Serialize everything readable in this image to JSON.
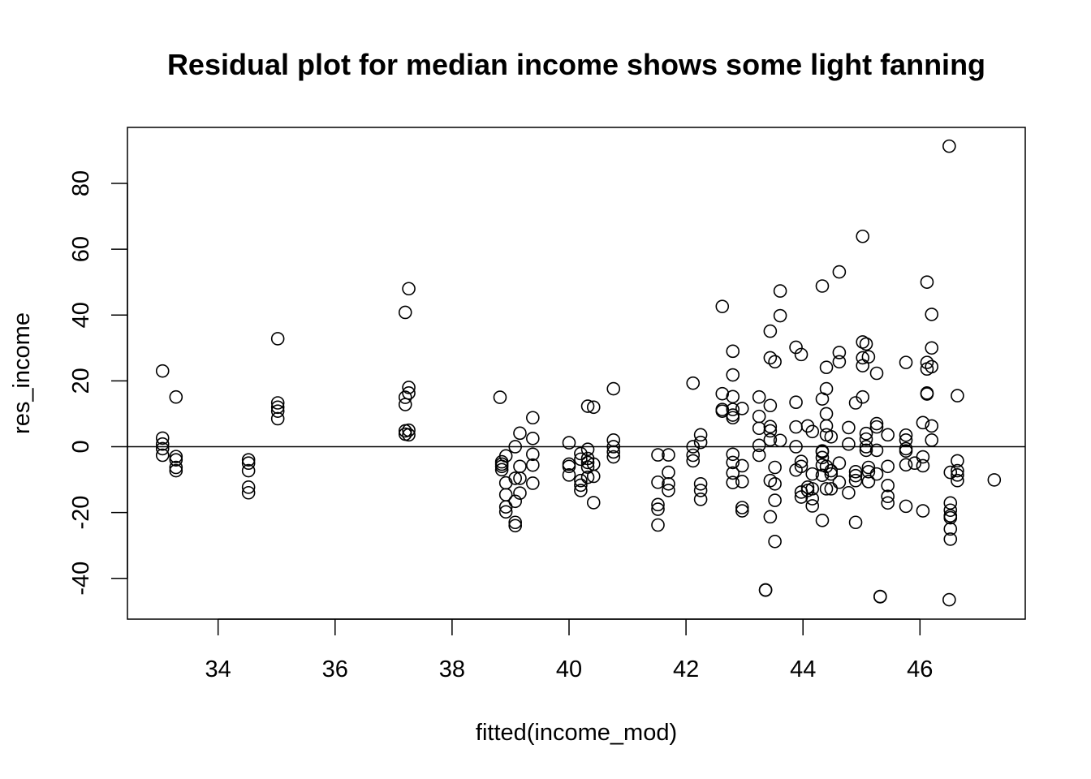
{
  "chart_data": {
    "type": "scatter",
    "title": "Residual plot for median income shows some light fanning",
    "xlabel": "fitted(income_mod)",
    "ylabel": "res_income",
    "xlim": [
      32.45,
      47.8
    ],
    "ylim": [
      -52.4,
      97.0
    ],
    "x_ticks": [
      34,
      36,
      38,
      40,
      42,
      44,
      46
    ],
    "y_ticks": [
      -40,
      -20,
      0,
      20,
      40,
      60,
      80
    ],
    "reference_line_y": 0,
    "grid": false,
    "marker": "open-circle",
    "color": "#000000",
    "points": [
      [
        33.05,
        23.0
      ],
      [
        33.05,
        2.6
      ],
      [
        33.05,
        0.8
      ],
      [
        33.05,
        -0.6
      ],
      [
        33.05,
        -2.6
      ],
      [
        33.28,
        15.1
      ],
      [
        33.28,
        -3.0
      ],
      [
        33.28,
        -4.0
      ],
      [
        33.28,
        -6.3
      ],
      [
        33.28,
        -7.3
      ],
      [
        34.52,
        -4.0
      ],
      [
        34.52,
        -5.0
      ],
      [
        34.52,
        -7.3
      ],
      [
        34.52,
        -12.3
      ],
      [
        34.52,
        -14.0
      ],
      [
        35.02,
        32.8
      ],
      [
        35.02,
        13.3
      ],
      [
        35.02,
        12.0
      ],
      [
        35.02,
        10.8
      ],
      [
        35.02,
        8.5
      ],
      [
        37.2,
        40.8
      ],
      [
        37.2,
        15.0
      ],
      [
        37.2,
        12.8
      ],
      [
        37.2,
        4.8
      ],
      [
        37.2,
        3.8
      ],
      [
        37.26,
        48.0
      ],
      [
        37.26,
        18.0
      ],
      [
        37.26,
        16.3
      ],
      [
        37.26,
        5.0
      ],
      [
        37.26,
        3.6
      ],
      [
        38.82,
        15.0
      ],
      [
        38.85,
        -4.6
      ],
      [
        38.85,
        -5.3
      ],
      [
        38.85,
        -6.0
      ],
      [
        38.85,
        -7.0
      ],
      [
        38.92,
        -2.8
      ],
      [
        38.92,
        -11.0
      ],
      [
        38.92,
        -14.6
      ],
      [
        38.92,
        -18.3
      ],
      [
        38.92,
        -19.8
      ],
      [
        39.08,
        0.0
      ],
      [
        39.08,
        -9.6
      ],
      [
        39.08,
        -16.6
      ],
      [
        39.08,
        -23.0
      ],
      [
        39.08,
        -24.0
      ],
      [
        39.16,
        4.1
      ],
      [
        39.16,
        -6.0
      ],
      [
        39.16,
        -9.6
      ],
      [
        39.16,
        -14.1
      ],
      [
        39.38,
        8.8
      ],
      [
        39.38,
        2.5
      ],
      [
        39.38,
        -2.3
      ],
      [
        39.38,
        -5.6
      ],
      [
        39.38,
        -11.1
      ],
      [
        40.0,
        1.2
      ],
      [
        40.0,
        -5.3
      ],
      [
        40.0,
        -6.0
      ],
      [
        40.0,
        -8.6
      ],
      [
        40.2,
        -2.1
      ],
      [
        40.2,
        -3.8
      ],
      [
        40.2,
        -10.3
      ],
      [
        40.2,
        -11.7
      ],
      [
        40.2,
        -13.3
      ],
      [
        40.32,
        12.3
      ],
      [
        40.32,
        -0.8
      ],
      [
        40.32,
        -3.6
      ],
      [
        40.32,
        -4.8
      ],
      [
        40.32,
        -6.2
      ],
      [
        40.32,
        -9.3
      ],
      [
        40.42,
        12.0
      ],
      [
        40.42,
        -5.3
      ],
      [
        40.42,
        -9.0
      ],
      [
        40.42,
        -17.0
      ],
      [
        40.76,
        17.6
      ],
      [
        40.76,
        2.0
      ],
      [
        40.76,
        0.0
      ],
      [
        40.76,
        -1.6
      ],
      [
        40.76,
        -3.1
      ],
      [
        41.52,
        -2.5
      ],
      [
        41.52,
        -10.8
      ],
      [
        41.52,
        -17.6
      ],
      [
        41.52,
        -19.0
      ],
      [
        41.52,
        -23.8
      ],
      [
        41.7,
        -2.5
      ],
      [
        41.7,
        -7.8
      ],
      [
        41.7,
        -11.3
      ],
      [
        41.7,
        -13.3
      ],
      [
        42.12,
        19.3
      ],
      [
        42.12,
        0.0
      ],
      [
        42.12,
        -2.6
      ],
      [
        42.12,
        -4.3
      ],
      [
        42.25,
        3.6
      ],
      [
        42.25,
        1.3
      ],
      [
        42.25,
        -11.3
      ],
      [
        42.25,
        -13.3
      ],
      [
        42.25,
        -16.0
      ],
      [
        42.62,
        42.6
      ],
      [
        42.62,
        16.1
      ],
      [
        42.62,
        11.3
      ],
      [
        42.62,
        10.8
      ],
      [
        42.8,
        29.0
      ],
      [
        42.8,
        21.8
      ],
      [
        42.8,
        15.2
      ],
      [
        42.8,
        11.3
      ],
      [
        42.8,
        9.6
      ],
      [
        42.8,
        8.8
      ],
      [
        42.8,
        -2.3
      ],
      [
        42.8,
        -4.8
      ],
      [
        42.8,
        -8.0
      ],
      [
        42.8,
        -10.9
      ],
      [
        42.96,
        11.6
      ],
      [
        42.96,
        -5.8
      ],
      [
        42.96,
        -10.6
      ],
      [
        42.96,
        -18.5
      ],
      [
        42.96,
        -19.5
      ],
      [
        43.25,
        15.1
      ],
      [
        43.25,
        9.2
      ],
      [
        43.25,
        5.6
      ],
      [
        43.25,
        0.4
      ],
      [
        43.25,
        -2.6
      ],
      [
        43.36,
        -43.5
      ],
      [
        43.36,
        -43.6
      ],
      [
        43.44,
        35.1
      ],
      [
        43.44,
        27.0
      ],
      [
        43.44,
        12.5
      ],
      [
        43.44,
        6.1
      ],
      [
        43.44,
        4.8
      ],
      [
        43.44,
        2.1
      ],
      [
        43.44,
        -10.3
      ],
      [
        43.44,
        -21.3
      ],
      [
        43.52,
        25.8
      ],
      [
        43.52,
        -6.3
      ],
      [
        43.52,
        -11.3
      ],
      [
        43.52,
        -16.3
      ],
      [
        43.52,
        -28.8
      ],
      [
        43.61,
        47.3
      ],
      [
        43.61,
        39.8
      ],
      [
        43.61,
        1.9
      ],
      [
        43.88,
        30.2
      ],
      [
        43.88,
        13.5
      ],
      [
        43.88,
        6.0
      ],
      [
        43.88,
        0.0
      ],
      [
        43.88,
        -7.1
      ],
      [
        43.97,
        28.0
      ],
      [
        43.97,
        -4.5
      ],
      [
        43.97,
        -6.0
      ],
      [
        43.97,
        -13.8
      ],
      [
        43.97,
        -15.3
      ],
      [
        44.08,
        6.3
      ],
      [
        44.08,
        -12.3
      ],
      [
        44.08,
        -13.3
      ],
      [
        44.16,
        4.6
      ],
      [
        44.16,
        -8.3
      ],
      [
        44.16,
        -12.8
      ],
      [
        44.16,
        -15.8
      ],
      [
        44.16,
        -18.0
      ],
      [
        44.33,
        48.8
      ],
      [
        44.33,
        14.5
      ],
      [
        44.33,
        -1.3
      ],
      [
        44.33,
        -1.6
      ],
      [
        44.33,
        -3.3
      ],
      [
        44.33,
        -5.6
      ],
      [
        44.33,
        -8.7
      ],
      [
        44.33,
        -22.4
      ],
      [
        44.4,
        24.1
      ],
      [
        44.4,
        17.6
      ],
      [
        44.4,
        10.0
      ],
      [
        44.4,
        6.3
      ],
      [
        44.4,
        3.6
      ],
      [
        44.4,
        -6.0
      ],
      [
        44.4,
        -12.8
      ],
      [
        44.48,
        3.0
      ],
      [
        44.48,
        -7.3
      ],
      [
        44.48,
        -8.3
      ],
      [
        44.48,
        -12.8
      ],
      [
        44.62,
        53.1
      ],
      [
        44.62,
        28.6
      ],
      [
        44.62,
        25.8
      ],
      [
        44.62,
        -5.0
      ],
      [
        44.62,
        -10.8
      ],
      [
        44.78,
        5.8
      ],
      [
        44.78,
        0.8
      ],
      [
        44.78,
        -14.0
      ],
      [
        44.9,
        13.3
      ],
      [
        44.9,
        -7.6
      ],
      [
        44.9,
        -8.8
      ],
      [
        44.9,
        -10.3
      ],
      [
        44.9,
        -23.0
      ],
      [
        45.02,
        63.9
      ],
      [
        45.02,
        31.8
      ],
      [
        45.02,
        27.0
      ],
      [
        45.02,
        24.6
      ],
      [
        45.02,
        15.1
      ],
      [
        45.08,
        31.2
      ],
      [
        45.08,
        4.0
      ],
      [
        45.08,
        2.3
      ],
      [
        45.08,
        0.0
      ],
      [
        45.08,
        -1.1
      ],
      [
        45.12,
        27.3
      ],
      [
        45.12,
        -6.3
      ],
      [
        45.12,
        -7.6
      ],
      [
        45.12,
        -10.6
      ],
      [
        45.26,
        22.3
      ],
      [
        45.26,
        7.0
      ],
      [
        45.26,
        6.0
      ],
      [
        45.26,
        -1.1
      ],
      [
        45.26,
        -8.3
      ],
      [
        45.32,
        -45.5
      ],
      [
        45.32,
        -45.6
      ],
      [
        45.45,
        3.6
      ],
      [
        45.45,
        -6.0
      ],
      [
        45.45,
        -11.8
      ],
      [
        45.45,
        -15.1
      ],
      [
        45.45,
        -17.1
      ],
      [
        45.76,
        25.6
      ],
      [
        45.76,
        3.5
      ],
      [
        45.76,
        2.0
      ],
      [
        45.76,
        -0.6
      ],
      [
        45.76,
        -1.3
      ],
      [
        45.76,
        -5.5
      ],
      [
        45.76,
        -18.1
      ],
      [
        45.91,
        -5.0
      ],
      [
        46.05,
        7.3
      ],
      [
        46.05,
        -3.1
      ],
      [
        46.05,
        -5.8
      ],
      [
        46.05,
        -19.5
      ],
      [
        46.12,
        50.0
      ],
      [
        46.12,
        25.6
      ],
      [
        46.12,
        23.6
      ],
      [
        46.12,
        16.3
      ],
      [
        46.12,
        16.0
      ],
      [
        46.2,
        40.2
      ],
      [
        46.2,
        30.0
      ],
      [
        46.2,
        24.3
      ],
      [
        46.2,
        6.3
      ],
      [
        46.2,
        2.0
      ],
      [
        46.5,
        91.3
      ],
      [
        46.5,
        -46.5
      ],
      [
        46.52,
        -7.8
      ],
      [
        46.52,
        -17.1
      ],
      [
        46.52,
        -19.3
      ],
      [
        46.52,
        -21.0
      ],
      [
        46.52,
        -21.6
      ],
      [
        46.52,
        -25.0
      ],
      [
        46.52,
        -28.1
      ],
      [
        46.64,
        15.5
      ],
      [
        46.64,
        -4.3
      ],
      [
        46.64,
        -7.3
      ],
      [
        46.64,
        -8.6
      ],
      [
        46.64,
        -10.3
      ],
      [
        47.27,
        -10.1
      ]
    ]
  }
}
